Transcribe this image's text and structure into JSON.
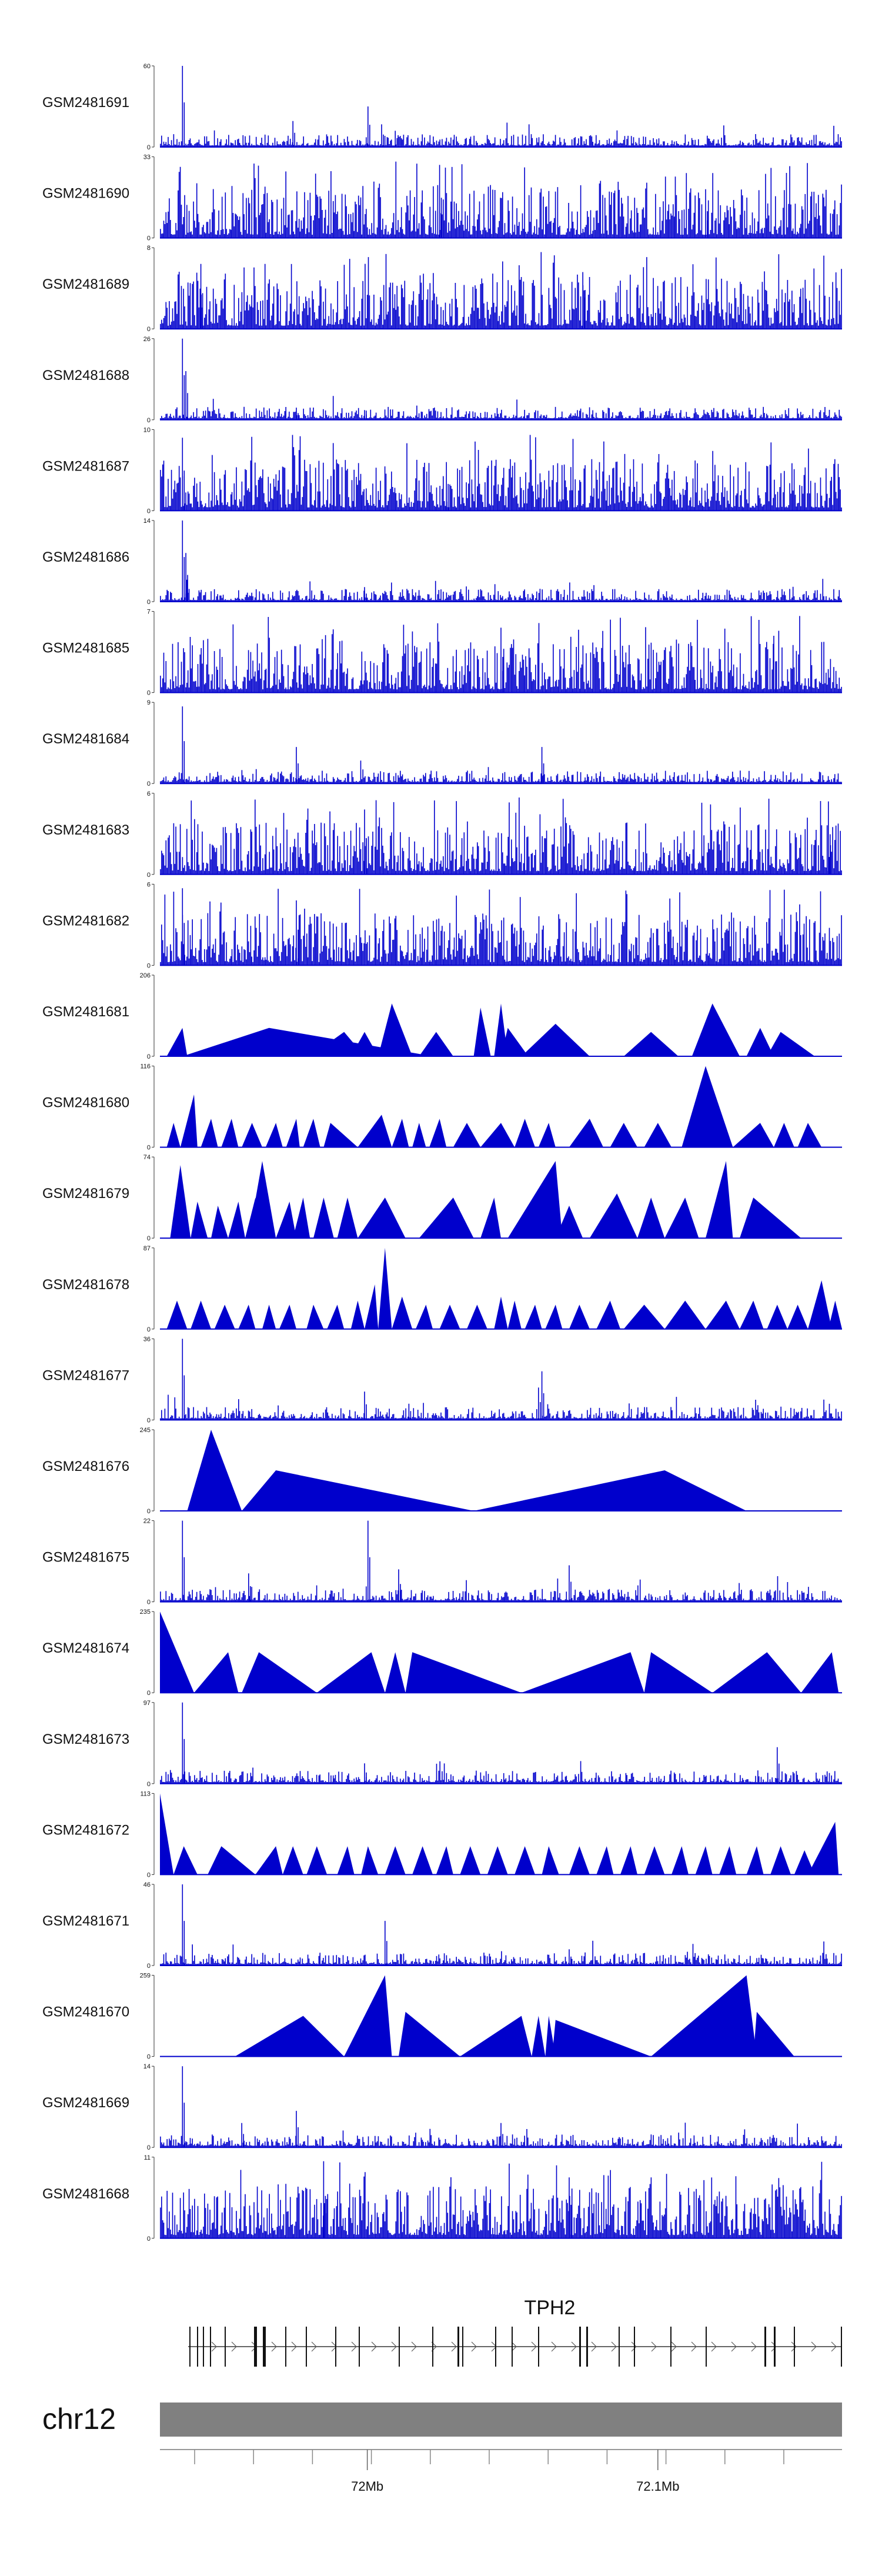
{
  "chart_data": {
    "type": "area",
    "tracks": [
      {
        "name": "GSM2481691",
        "ymax": "60",
        "pattern": "sparse",
        "seed": 1,
        "peaks": [
          [
            0.033,
            1.0
          ],
          [
            0.195,
            0.32
          ],
          [
            0.305,
            0.5
          ],
          [
            0.325,
            0.28
          ],
          [
            0.345,
            0.2
          ]
        ]
      },
      {
        "name": "GSM2481690",
        "ymax": "33",
        "pattern": "dense",
        "seed": 2,
        "peaks": [
          [
            0.41,
            0.9
          ],
          [
            0.8,
            0.6
          ]
        ]
      },
      {
        "name": "GSM2481689",
        "ymax": "8",
        "pattern": "dense",
        "seed": 3,
        "peaks": [
          [
            0.06,
            0.8
          ],
          [
            0.62,
            0.7
          ]
        ]
      },
      {
        "name": "GSM2481688",
        "ymax": "26",
        "pattern": "sparse",
        "seed": 4,
        "peaks": [
          [
            0.033,
            1.0
          ],
          [
            0.038,
            0.6
          ],
          [
            0.2,
            0.15
          ],
          [
            0.3,
            0.12
          ]
        ]
      },
      {
        "name": "GSM2481687",
        "ymax": "10",
        "pattern": "dense",
        "seed": 5,
        "peaks": [
          [
            0.033,
            0.9
          ],
          [
            0.42,
            0.6
          ]
        ]
      },
      {
        "name": "GSM2481686",
        "ymax": "14",
        "pattern": "sparse",
        "seed": 6,
        "peaks": [
          [
            0.033,
            1.0
          ],
          [
            0.038,
            0.6
          ],
          [
            0.22,
            0.25
          ],
          [
            0.3,
            0.18
          ]
        ]
      },
      {
        "name": "GSM2481685",
        "ymax": "7",
        "pattern": "dense",
        "seed": 7,
        "peaks": [
          [
            0.5,
            0.8
          ],
          [
            0.9,
            0.7
          ]
        ]
      },
      {
        "name": "GSM2481684",
        "ymax": "9",
        "pattern": "sparse",
        "seed": 8,
        "peaks": [
          [
            0.033,
            0.95
          ],
          [
            0.2,
            0.45
          ],
          [
            0.56,
            0.45
          ]
        ]
      },
      {
        "name": "GSM2481683",
        "ymax": "6",
        "pattern": "dense",
        "seed": 9,
        "peaks": [
          [
            0.3,
            0.8
          ],
          [
            0.98,
            0.9
          ]
        ]
      },
      {
        "name": "GSM2481682",
        "ymax": "6",
        "pattern": "dense",
        "seed": 10,
        "peaks": [
          [
            0.033,
            0.95
          ],
          [
            0.2,
            0.8
          ]
        ]
      },
      {
        "name": "GSM2481681",
        "ymax": "206",
        "pattern": "tri",
        "seed": 11,
        "tri": [
          [
            0.01,
            0.033,
            0.35,
            0.04
          ],
          [
            0.035,
            0.033,
            1.0,
            0.035
          ],
          [
            0.033,
            0.16,
            0.35,
            0.4
          ],
          [
            0.22,
            0.27,
            0.3,
            0.3
          ],
          [
            0.28,
            0.3,
            0.3,
            0.32
          ],
          [
            0.32,
            0.34,
            0.65,
            0.37
          ],
          [
            0.38,
            0.405,
            0.3,
            0.43
          ],
          [
            0.46,
            0.47,
            0.6,
            0.485
          ],
          [
            0.49,
            0.5,
            0.65,
            0.51
          ],
          [
            0.5,
            0.51,
            0.35,
            0.54
          ],
          [
            0.53,
            0.58,
            0.4,
            0.63
          ],
          [
            0.68,
            0.72,
            0.3,
            0.76
          ],
          [
            0.78,
            0.81,
            0.65,
            0.85
          ],
          [
            0.86,
            0.88,
            0.35,
            0.9
          ],
          [
            0.89,
            0.91,
            0.3,
            0.96
          ]
        ]
      },
      {
        "name": "GSM2481680",
        "ymax": "116",
        "pattern": "tri",
        "seed": 12,
        "tri": [
          [
            0.01,
            0.02,
            0.3,
            0.03
          ],
          [
            0.03,
            0.05,
            0.65,
            0.055
          ],
          [
            0.06,
            0.075,
            0.35,
            0.085
          ],
          [
            0.09,
            0.105,
            0.35,
            0.115
          ],
          [
            0.12,
            0.135,
            0.3,
            0.15
          ],
          [
            0.155,
            0.17,
            0.3,
            0.18
          ],
          [
            0.185,
            0.2,
            0.35,
            0.205
          ],
          [
            0.21,
            0.225,
            0.35,
            0.235
          ],
          [
            0.24,
            0.25,
            0.3,
            0.29
          ],
          [
            0.29,
            0.325,
            0.4,
            0.34
          ],
          [
            0.34,
            0.355,
            0.35,
            0.365
          ],
          [
            0.37,
            0.38,
            0.3,
            0.39
          ],
          [
            0.395,
            0.41,
            0.35,
            0.42
          ],
          [
            0.43,
            0.45,
            0.3,
            0.47
          ],
          [
            0.47,
            0.5,
            0.3,
            0.52
          ],
          [
            0.52,
            0.535,
            0.35,
            0.55
          ],
          [
            0.555,
            0.57,
            0.3,
            0.58
          ],
          [
            0.6,
            0.63,
            0.35,
            0.65
          ],
          [
            0.66,
            0.68,
            0.3,
            0.7
          ],
          [
            0.71,
            0.73,
            0.3,
            0.75
          ],
          [
            0.765,
            0.8,
            1.0,
            0.84
          ],
          [
            0.84,
            0.88,
            0.3,
            0.9
          ],
          [
            0.9,
            0.915,
            0.3,
            0.93
          ],
          [
            0.935,
            0.95,
            0.3,
            0.97
          ]
        ]
      },
      {
        "name": "GSM2481679",
        "ymax": "74",
        "pattern": "tri",
        "seed": 13,
        "tri": [
          [
            0.015,
            0.03,
            0.9,
            0.045
          ],
          [
            0.045,
            0.055,
            0.45,
            0.07
          ],
          [
            0.075,
            0.085,
            0.4,
            0.1
          ],
          [
            0.1,
            0.115,
            0.45,
            0.125
          ],
          [
            0.125,
            0.14,
            0.5,
            0.15
          ],
          [
            0.13,
            0.15,
            0.95,
            0.17
          ],
          [
            0.17,
            0.19,
            0.45,
            0.2
          ],
          [
            0.195,
            0.21,
            0.5,
            0.22
          ],
          [
            0.225,
            0.24,
            0.5,
            0.255
          ],
          [
            0.26,
            0.275,
            0.5,
            0.29
          ],
          [
            0.29,
            0.33,
            0.5,
            0.36
          ],
          [
            0.38,
            0.43,
            0.5,
            0.46
          ],
          [
            0.47,
            0.49,
            0.5,
            0.5
          ],
          [
            0.51,
            0.58,
            0.95,
            0.59
          ],
          [
            0.58,
            0.6,
            0.4,
            0.62
          ],
          [
            0.63,
            0.67,
            0.55,
            0.7
          ],
          [
            0.7,
            0.72,
            0.5,
            0.74
          ],
          [
            0.74,
            0.77,
            0.5,
            0.79
          ],
          [
            0.8,
            0.83,
            0.95,
            0.84
          ],
          [
            0.85,
            0.87,
            0.5,
            0.94
          ]
        ]
      },
      {
        "name": "GSM2481678",
        "ymax": "87",
        "pattern": "tri",
        "seed": 14,
        "tri": [
          [
            0.01,
            0.025,
            0.35,
            0.04
          ],
          [
            0.045,
            0.06,
            0.35,
            0.075
          ],
          [
            0.08,
            0.095,
            0.3,
            0.11
          ],
          [
            0.115,
            0.13,
            0.3,
            0.14
          ],
          [
            0.15,
            0.16,
            0.3,
            0.17
          ],
          [
            0.175,
            0.19,
            0.3,
            0.2
          ],
          [
            0.215,
            0.225,
            0.3,
            0.24
          ],
          [
            0.245,
            0.26,
            0.3,
            0.27
          ],
          [
            0.28,
            0.29,
            0.35,
            0.3
          ],
          [
            0.3,
            0.315,
            0.55,
            0.32
          ],
          [
            0.32,
            0.33,
            1.0,
            0.34
          ],
          [
            0.34,
            0.355,
            0.4,
            0.37
          ],
          [
            0.375,
            0.39,
            0.3,
            0.4
          ],
          [
            0.41,
            0.425,
            0.3,
            0.44
          ],
          [
            0.45,
            0.465,
            0.3,
            0.48
          ],
          [
            0.49,
            0.5,
            0.4,
            0.51
          ],
          [
            0.51,
            0.52,
            0.35,
            0.53
          ],
          [
            0.535,
            0.55,
            0.3,
            0.56
          ],
          [
            0.565,
            0.58,
            0.3,
            0.59
          ],
          [
            0.6,
            0.615,
            0.3,
            0.63
          ],
          [
            0.64,
            0.66,
            0.35,
            0.675
          ],
          [
            0.68,
            0.71,
            0.3,
            0.74
          ],
          [
            0.74,
            0.77,
            0.35,
            0.8
          ],
          [
            0.8,
            0.83,
            0.35,
            0.85
          ],
          [
            0.85,
            0.87,
            0.35,
            0.885
          ],
          [
            0.89,
            0.905,
            0.3,
            0.92
          ],
          [
            0.92,
            0.935,
            0.3,
            0.95
          ],
          [
            0.95,
            0.97,
            0.6,
            0.985
          ],
          [
            0.98,
            0.99,
            0.35,
            1.0
          ]
        ]
      },
      {
        "name": "GSM2481677",
        "ymax": "36",
        "pattern": "sparse",
        "seed": 15,
        "peaks": [
          [
            0.033,
            1.0
          ],
          [
            0.3,
            0.35
          ],
          [
            0.365,
            0.2
          ],
          [
            0.555,
            0.4
          ],
          [
            0.56,
            0.6
          ]
        ]
      },
      {
        "name": "GSM2481676",
        "ymax": "245",
        "pattern": "tri",
        "seed": 16,
        "tri": [
          [
            0.04,
            0.075,
            1.0,
            0.12
          ],
          [
            0.12,
            0.17,
            0.5,
            0.46
          ],
          [
            0.46,
            0.74,
            0.5,
            0.86
          ]
        ]
      },
      {
        "name": "GSM2481675",
        "ymax": "22",
        "pattern": "sparse",
        "seed": 17,
        "peaks": [
          [
            0.033,
            1.0
          ],
          [
            0.305,
            1.0
          ],
          [
            0.13,
            0.35
          ],
          [
            0.35,
            0.4
          ],
          [
            0.6,
            0.45
          ]
        ]
      },
      {
        "name": "GSM2481674",
        "ymax": "235",
        "pattern": "tri",
        "seed": 18,
        "tri": [
          [
            0.0,
            0.0,
            1.0,
            0.05
          ],
          [
            0.05,
            0.1,
            0.5,
            0.115
          ],
          [
            0.12,
            0.145,
            0.5,
            0.23
          ],
          [
            0.23,
            0.31,
            0.5,
            0.33
          ],
          [
            0.33,
            0.345,
            0.5,
            0.36
          ],
          [
            0.36,
            0.37,
            0.5,
            0.53
          ],
          [
            0.53,
            0.69,
            0.5,
            0.71
          ],
          [
            0.71,
            0.72,
            0.5,
            0.81
          ],
          [
            0.81,
            0.89,
            0.5,
            0.94
          ],
          [
            0.94,
            0.985,
            0.5,
            0.995
          ]
        ]
      },
      {
        "name": "GSM2481673",
        "ymax": "97",
        "pattern": "sparse",
        "seed": 19,
        "peaks": [
          [
            0.033,
            1.0
          ],
          [
            0.3,
            0.25
          ],
          [
            0.905,
            0.45
          ]
        ]
      },
      {
        "name": "GSM2481672",
        "ymax": "113",
        "pattern": "tri",
        "seed": 20,
        "tri": [
          [
            0.0,
            0.0,
            1.0,
            0.02
          ],
          [
            0.02,
            0.035,
            0.35,
            0.055
          ],
          [
            0.07,
            0.09,
            0.35,
            0.14
          ],
          [
            0.14,
            0.17,
            0.35,
            0.18
          ],
          [
            0.18,
            0.195,
            0.35,
            0.21
          ],
          [
            0.215,
            0.23,
            0.35,
            0.245
          ],
          [
            0.26,
            0.275,
            0.35,
            0.285
          ],
          [
            0.295,
            0.305,
            0.35,
            0.32
          ],
          [
            0.33,
            0.345,
            0.35,
            0.36
          ],
          [
            0.37,
            0.385,
            0.35,
            0.4
          ],
          [
            0.405,
            0.42,
            0.35,
            0.43
          ],
          [
            0.44,
            0.455,
            0.35,
            0.47
          ],
          [
            0.48,
            0.495,
            0.35,
            0.51
          ],
          [
            0.52,
            0.535,
            0.35,
            0.55
          ],
          [
            0.56,
            0.57,
            0.35,
            0.585
          ],
          [
            0.6,
            0.615,
            0.35,
            0.63
          ],
          [
            0.64,
            0.655,
            0.35,
            0.665
          ],
          [
            0.675,
            0.69,
            0.35,
            0.7
          ],
          [
            0.71,
            0.725,
            0.35,
            0.74
          ],
          [
            0.75,
            0.765,
            0.35,
            0.775
          ],
          [
            0.785,
            0.8,
            0.35,
            0.81
          ],
          [
            0.82,
            0.835,
            0.35,
            0.845
          ],
          [
            0.86,
            0.875,
            0.35,
            0.885
          ],
          [
            0.895,
            0.91,
            0.35,
            0.925
          ],
          [
            0.93,
            0.945,
            0.3,
            0.96
          ],
          [
            0.95,
            0.99,
            0.65,
            0.995
          ]
        ]
      },
      {
        "name": "GSM2481671",
        "ymax": "46",
        "pattern": "sparse",
        "seed": 21,
        "peaks": [
          [
            0.033,
            1.0
          ],
          [
            0.33,
            0.55
          ],
          [
            0.6,
            0.2
          ]
        ]
      },
      {
        "name": "GSM2481670",
        "ymax": "259",
        "pattern": "tri",
        "seed": 22,
        "tri": [
          [
            0.11,
            0.21,
            0.5,
            0.27
          ],
          [
            0.27,
            0.33,
            1.0,
            0.34
          ],
          [
            0.35,
            0.36,
            0.55,
            0.44
          ],
          [
            0.44,
            0.53,
            0.5,
            0.545
          ],
          [
            0.545,
            0.555,
            0.5,
            0.565
          ],
          [
            0.565,
            0.57,
            0.5,
            0.58
          ],
          [
            0.575,
            0.58,
            0.45,
            0.72
          ],
          [
            0.72,
            0.86,
            1.0,
            0.875
          ],
          [
            0.87,
            0.875,
            0.55,
            0.93
          ]
        ]
      },
      {
        "name": "GSM2481669",
        "ymax": "14",
        "pattern": "sparse",
        "seed": 23,
        "peaks": [
          [
            0.033,
            1.0
          ],
          [
            0.2,
            0.45
          ],
          [
            0.12,
            0.3
          ],
          [
            0.5,
            0.3
          ]
        ]
      },
      {
        "name": "GSM2481668",
        "ymax": "11",
        "pattern": "dense",
        "seed": 24,
        "peaks": [
          [
            0.24,
            0.95
          ],
          [
            0.6,
            0.75
          ]
        ]
      }
    ],
    "gene": {
      "name": "TPH2"
    },
    "chromosome": "chr12",
    "position_ticks": [
      {
        "label": "72Mb",
        "x": 0.304
      },
      {
        "label": "72.1Mb",
        "x": 0.73
      }
    ],
    "colors": {
      "track": "#0000cc",
      "ideogram": "#808080"
    }
  }
}
